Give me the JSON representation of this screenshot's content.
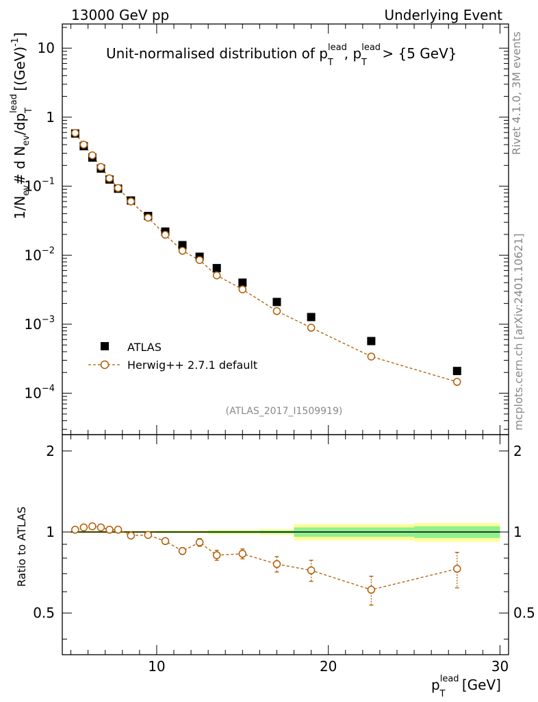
{
  "header": {
    "left": "13000 GeV pp",
    "right": "Underlying Event"
  },
  "side": {
    "rivet": "Rivet 4.1.0,  3M events",
    "mcplots": "mcplots.cern.ch [arXiv:2401.10621]"
  },
  "colors": {
    "data": "#000000",
    "mc": "#b05a00",
    "band_inner": "#90f090",
    "band_outer": "#ffff99"
  },
  "chart_data": [
    {
      "type": "scatter",
      "panel": "main",
      "title": "Unit-normalised distribution of p_T^lead, p_T^lead > {5 GeV}",
      "title_parts": {
        "a": "Unit-normalised distribution of p",
        "sup1": "lead",
        "sub1": "T",
        "b": ", p",
        "sup2": "lead",
        "sub2": "T",
        "c": " > {5 GeV}"
      },
      "ylabel": "1/N_ev # d N_ev/dp_T^lead [(GeV)^-1]",
      "ylabel_parts": {
        "a": "1/N",
        "sub_ev1": "ev",
        "b": "# d N",
        "sub_ev2": "ev",
        "c": "/dp",
        "sup_lead": "lead",
        "sub_t": "T",
        "d": " [(GeV)",
        "sup_exp": "-1",
        "e": "]"
      },
      "xlim": [
        4.5,
        30.5
      ],
      "ylim_log10": [
        -4.6,
        1.35
      ],
      "yscale": "log",
      "ytick_labels": [
        {
          "v": 10,
          "base": "10",
          "exp": ""
        },
        {
          "v": 1,
          "base": "1",
          "exp": ""
        },
        {
          "v": 0.1,
          "base": "10",
          "exp": "−1"
        },
        {
          "v": 0.01,
          "base": "10",
          "exp": "−2"
        },
        {
          "v": 0.001,
          "base": "10",
          "exp": "−3"
        },
        {
          "v": 0.0001,
          "base": "10",
          "exp": "−4"
        }
      ],
      "legend": {
        "position": "lower-left",
        "entries": [
          "ATLAS",
          "Herwig++ 2.7.1 default"
        ]
      },
      "annotation": "(ATLAS_2017_I1509919)",
      "series": [
        {
          "name": "ATLAS",
          "marker": "square",
          "x": [
            5.25,
            5.75,
            6.25,
            6.75,
            7.25,
            7.75,
            8.5,
            9.5,
            10.5,
            11.5,
            12.5,
            13.5,
            15.0,
            17.0,
            19.0,
            22.5,
            27.5
          ],
          "y": [
            0.58,
            0.38,
            0.26,
            0.18,
            0.125,
            0.092,
            0.062,
            0.037,
            0.022,
            0.014,
            0.0095,
            0.0065,
            0.004,
            0.0021,
            0.00127,
            0.00057,
            0.00021
          ]
        },
        {
          "name": "Herwig++ 2.7.1 default",
          "marker": "open-circle",
          "line": "dashed",
          "x": [
            5.25,
            5.75,
            6.25,
            6.75,
            7.25,
            7.75,
            8.5,
            9.5,
            10.5,
            11.5,
            12.5,
            13.5,
            15.0,
            17.0,
            19.0,
            22.5,
            27.5
          ],
          "y": [
            0.59,
            0.4,
            0.28,
            0.19,
            0.13,
            0.094,
            0.06,
            0.035,
            0.0198,
            0.0116,
            0.0085,
            0.0051,
            0.0032,
            0.00155,
            0.00089,
            0.00034,
            0.000146
          ],
          "yerr_rel": [
            0.01,
            0.01,
            0.01,
            0.01,
            0.01,
            0.01,
            0.01,
            0.01,
            0.015,
            0.02,
            0.025,
            0.03,
            0.03,
            0.05,
            0.06,
            0.08,
            0.12
          ]
        }
      ]
    },
    {
      "type": "scatter",
      "panel": "ratio",
      "ylabel": "Ratio to ATLAS",
      "xlabel": "p_T^lead [GeV]",
      "xlabel_parts": {
        "a": "p",
        "sup": "lead",
        "sub": "T",
        "b": " [GeV]"
      },
      "xlim": [
        4.5,
        30.5
      ],
      "ylim": [
        0.35,
        2.3
      ],
      "xtick_labels": [
        {
          "v": 10,
          "label": "10"
        },
        {
          "v": 20,
          "label": "20"
        },
        {
          "v": 30,
          "label": "30"
        }
      ],
      "ytick_labels": [
        {
          "v": 2,
          "label": "2"
        },
        {
          "v": 1,
          "label": "1"
        },
        {
          "v": 0.5,
          "label": "0.5"
        }
      ],
      "bands": [
        {
          "x0": 5.0,
          "x1": 10.0,
          "inner": 0.005,
          "outer": 0.01
        },
        {
          "x0": 10.0,
          "x1": 13.0,
          "inner": 0.007,
          "outer": 0.013
        },
        {
          "x0": 13.0,
          "x1": 16.0,
          "inner": 0.01,
          "outer": 0.02
        },
        {
          "x0": 16.0,
          "x1": 18.0,
          "inner": 0.012,
          "outer": 0.025
        },
        {
          "x0": 18.0,
          "x1": 25.0,
          "inner": 0.04,
          "outer": 0.07
        },
        {
          "x0": 25.0,
          "x1": 30.0,
          "inner": 0.05,
          "outer": 0.08
        }
      ],
      "series": [
        {
          "name": "Herwig++ 2.7.1 default",
          "x": [
            5.25,
            5.75,
            6.25,
            6.75,
            7.25,
            7.75,
            8.5,
            9.5,
            10.5,
            11.5,
            12.5,
            13.5,
            15.0,
            17.0,
            19.0,
            22.5,
            27.5
          ],
          "y": [
            1.02,
            1.04,
            1.05,
            1.04,
            1.02,
            1.02,
            0.97,
            0.975,
            0.925,
            0.85,
            0.915,
            0.82,
            0.83,
            0.76,
            0.72,
            0.61,
            0.73
          ],
          "yerr": [
            0.008,
            0.008,
            0.008,
            0.008,
            0.008,
            0.008,
            0.01,
            0.01,
            0.015,
            0.025,
            0.03,
            0.035,
            0.035,
            0.05,
            0.065,
            0.075,
            0.11
          ]
        }
      ]
    }
  ]
}
